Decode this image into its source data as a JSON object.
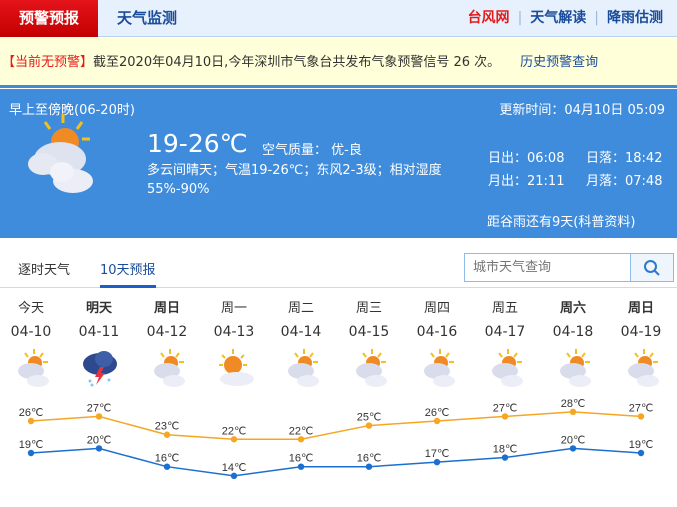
{
  "nav": {
    "active_tab": "预警预报",
    "tab2": "天气监测",
    "links": [
      "台风网",
      "天气解读",
      "降雨估测"
    ]
  },
  "alert": {
    "status": "【当前无预警】",
    "text": "截至2020年04月10日,今年深圳市气象台共发布气象预警信号 26 次。",
    "history_link": "历史预警查询"
  },
  "today": {
    "period": "早上至傍晚(06-20时)",
    "update_time": "更新时间：04月10日 05:09",
    "temp": "19-26℃",
    "air_quality": "空气质量： 优-良",
    "description": "多云间晴天；气温19-26℃；东风2-3级；相对湿度55%-90%",
    "sunrise": "日出：06:08",
    "sunset": "日落：18:42",
    "moonrise": "月出：21:11",
    "moonset": "月落：07:48",
    "solar_term": "距谷雨还有9天(科普资料)",
    "icon": "partly-cloudy-icon"
  },
  "tabs": {
    "hourly": "逐时天气",
    "ten_day": "10天预报"
  },
  "search": {
    "placeholder": "城市天气查询"
  },
  "colors": {
    "high": "#f5a623",
    "low": "#1a6fd0",
    "accent": "#3f8cdc"
  },
  "chart_data": {
    "type": "line",
    "categories": [
      "04-10",
      "04-11",
      "04-12",
      "04-13",
      "04-14",
      "04-15",
      "04-16",
      "04-17",
      "04-18",
      "04-19"
    ],
    "series": [
      {
        "values": [
          26,
          27,
          23,
          22,
          22,
          25,
          26,
          27,
          28,
          27
        ]
      },
      {
        "values": [
          19,
          20,
          16,
          14,
          16,
          16,
          17,
          18,
          20,
          19
        ]
      }
    ],
    "unit": "℃"
  },
  "forecast": [
    {
      "day": "今天",
      "date": "04-10",
      "icon": "partly-cloudy",
      "bold": false
    },
    {
      "day": "明天",
      "date": "04-11",
      "icon": "thunderstorm",
      "bold": true
    },
    {
      "day": "周日",
      "date": "04-12",
      "icon": "partly-cloudy",
      "bold": true
    },
    {
      "day": "周一",
      "date": "04-13",
      "icon": "sunny-cloudy",
      "bold": false
    },
    {
      "day": "周二",
      "date": "04-14",
      "icon": "partly-cloudy",
      "bold": false
    },
    {
      "day": "周三",
      "date": "04-15",
      "icon": "partly-cloudy",
      "bold": false
    },
    {
      "day": "周四",
      "date": "04-16",
      "icon": "partly-cloudy",
      "bold": false
    },
    {
      "day": "周五",
      "date": "04-17",
      "icon": "partly-cloudy",
      "bold": false
    },
    {
      "day": "周六",
      "date": "04-18",
      "icon": "partly-cloudy",
      "bold": true
    },
    {
      "day": "周日",
      "date": "04-19",
      "icon": "partly-cloudy",
      "bold": true
    }
  ]
}
